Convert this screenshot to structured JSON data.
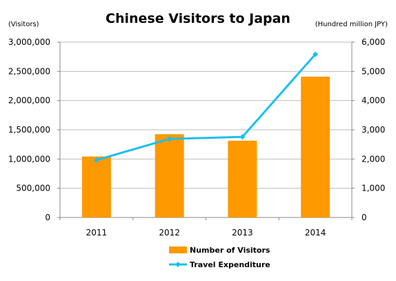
{
  "chart_data": {
    "type": "bar",
    "title": "Chinese Visitors to Japan",
    "categories": [
      "2011",
      "2012",
      "2013",
      "2014"
    ],
    "series": [
      {
        "name": "Number of Visitors",
        "type": "bar",
        "axis": "left",
        "color": "#FF9900",
        "values": [
          1043000,
          1425000,
          1314000,
          2409000
        ]
      },
      {
        "name": "Travel Expenditure",
        "type": "line",
        "axis": "right",
        "color": "#1ABFF0",
        "values": [
          1964,
          2688,
          2759,
          5583
        ]
      }
    ],
    "y_left": {
      "label": "(Visitors)",
      "ylim": [
        0,
        3000000
      ],
      "ticks": [
        "0",
        "500,000",
        "1,000,000",
        "1,500,000",
        "2,000,000",
        "2,500,000",
        "3,000,000"
      ]
    },
    "y_right": {
      "label": "(Hundred million JPY)",
      "ylim": [
        0,
        6000
      ],
      "ticks": [
        "0",
        "1,000",
        "2,000",
        "3,000",
        "4,000",
        "5,000",
        "6,000"
      ]
    },
    "grid": true,
    "legend_position": "bottom"
  }
}
